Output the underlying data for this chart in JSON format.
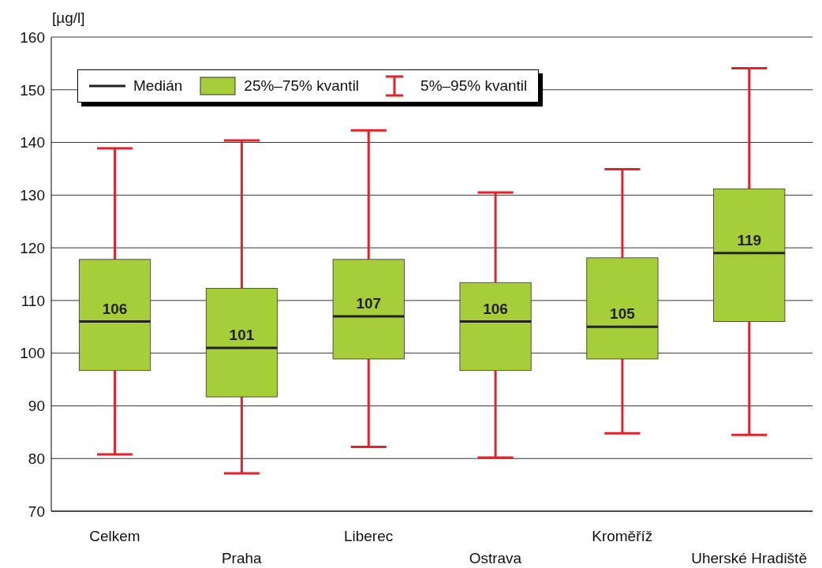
{
  "chart_data": {
    "type": "box",
    "ylabel": "[µg/l]",
    "categories": [
      "Celkem",
      "Praha",
      "Liberec",
      "Ostrava",
      "Kroměříž",
      "Uherské Hradiště"
    ],
    "series": [
      {
        "name": "25%–75% kvantil",
        "color": "#a6ce39",
        "boxes": [
          {
            "low": 80.8,
            "q1": 96.7,
            "median": 106,
            "q3": 117.8,
            "high": 138.9
          },
          {
            "low": 77.2,
            "q1": 91.7,
            "median": 101,
            "q3": 112.3,
            "high": 140.4
          },
          {
            "low": 82.2,
            "q1": 98.9,
            "median": 107,
            "q3": 117.8,
            "high": 142.3
          },
          {
            "low": 80.2,
            "q1": 96.7,
            "median": 106,
            "q3": 113.4,
            "high": 130.5
          },
          {
            "low": 84.8,
            "q1": 98.9,
            "median": 105,
            "q3": 118.1,
            "high": 134.9
          },
          {
            "low": 84.5,
            "q1": 106.0,
            "median": 119,
            "q3": 131.2,
            "high": 154.1
          }
        ],
        "value_labels": [
          "106",
          "101",
          "107",
          "106",
          "105",
          "119"
        ]
      }
    ],
    "annotations": [
      "Medián",
      "5%–95% kvantil"
    ],
    "ylim": [
      70,
      160
    ],
    "yticks": [
      70,
      80,
      90,
      100,
      110,
      120,
      130,
      140,
      150,
      160
    ],
    "grid": "y",
    "legend": "top left"
  }
}
